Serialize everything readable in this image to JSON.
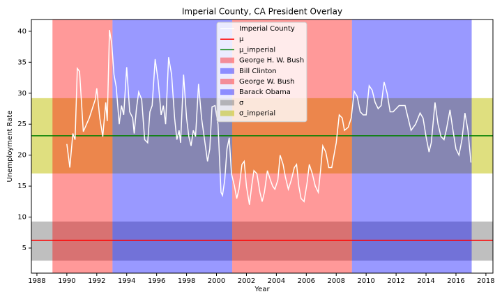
{
  "chart_data": {
    "type": "line",
    "title": "Imperial County, CA President Overlay",
    "xlabel": "Year",
    "ylabel": "Unemployment Rate",
    "xlim": [
      1987.63,
      2018.47
    ],
    "ylim": [
      0.95,
      41.9
    ],
    "xticks": [
      1988,
      1990,
      1992,
      1994,
      1996,
      1998,
      2000,
      2002,
      2004,
      2006,
      2008,
      2010,
      2012,
      2014,
      2016,
      2018
    ],
    "yticks": [
      5,
      10,
      15,
      20,
      25,
      30,
      35,
      40
    ],
    "legend": "upper center",
    "x": [
      1990.0,
      1990.2,
      1990.4,
      1990.55,
      1990.7,
      1990.85,
      1991.1,
      1991.5,
      1991.9,
      1992.0,
      1992.2,
      1992.4,
      1992.6,
      1992.7,
      1992.85,
      1993.0,
      1993.15,
      1993.3,
      1993.5,
      1993.65,
      1993.8,
      1994.0,
      1994.2,
      1994.4,
      1994.5,
      1994.65,
      1994.8,
      1995.0,
      1995.2,
      1995.4,
      1995.55,
      1995.7,
      1995.9,
      1996.1,
      1996.3,
      1996.45,
      1996.6,
      1996.8,
      1997.0,
      1997.2,
      1997.35,
      1997.5,
      1997.6,
      1997.8,
      1998.0,
      1998.15,
      1998.3,
      1998.45,
      1998.6,
      1998.8,
      1999.0,
      1999.2,
      1999.4,
      1999.55,
      1999.7,
      1999.9,
      2000.1,
      2000.3,
      2000.4,
      2000.55,
      2000.7,
      2000.85,
      2001.0,
      2001.2,
      2001.35,
      2001.5,
      2001.7,
      2001.85,
      2002.0,
      2002.2,
      2002.35,
      2002.5,
      2002.7,
      2002.9,
      2003.05,
      2003.2,
      2003.4,
      2003.6,
      2003.75,
      2003.9,
      2004.1,
      2004.25,
      2004.45,
      2004.6,
      2004.8,
      2005.0,
      2005.2,
      2005.35,
      2005.5,
      2005.65,
      2005.85,
      2006.05,
      2006.2,
      2006.4,
      2006.6,
      2006.8,
      2006.95,
      2007.1,
      2007.3,
      2007.5,
      2007.7,
      2007.85,
      2008.0,
      2008.2,
      2008.4,
      2008.55,
      2008.8,
      2009.0,
      2009.2,
      2009.4,
      2009.6,
      2009.8,
      2010.0,
      2010.2,
      2010.4,
      2010.6,
      2010.8,
      2011.0,
      2011.2,
      2011.4,
      2011.6,
      2011.8,
      2012.0,
      2012.2,
      2012.4,
      2012.6,
      2012.8,
      2013.0,
      2013.3,
      2013.6,
      2013.8,
      2014.0,
      2014.2,
      2014.35,
      2014.6,
      2014.8,
      2015.0,
      2015.2,
      2015.35,
      2015.6,
      2015.8,
      2016.0,
      2016.2,
      2016.4,
      2016.6,
      2016.8,
      2017.0
    ],
    "series": [
      {
        "name": "Imperial County",
        "color": "#ffffff",
        "values": [
          21.8,
          18,
          23.5,
          22.5,
          34,
          33.5,
          23.8,
          26,
          29,
          30.8,
          26,
          23,
          28.5,
          25.5,
          40.2,
          38,
          33,
          31,
          25,
          28,
          26.5,
          34.2,
          27,
          26,
          23.5,
          27.5,
          30.2,
          29,
          22.5,
          22,
          27,
          28,
          35.5,
          32,
          26.5,
          28,
          25,
          35.8,
          33,
          26,
          22.5,
          24,
          22,
          33,
          26,
          23,
          21.5,
          24,
          23,
          31.5,
          26,
          22.5,
          19,
          21,
          27.8,
          28,
          25,
          14,
          13.5,
          16,
          21,
          22.8,
          17,
          15,
          13,
          14.5,
          18.5,
          19,
          15,
          12,
          15,
          17.5,
          17,
          14,
          12.5,
          14,
          17.5,
          16,
          15,
          14.5,
          16,
          20,
          18.5,
          16.5,
          14.5,
          16,
          18,
          18.5,
          15,
          13,
          12.5,
          15.5,
          18.5,
          17,
          15,
          14,
          17.5,
          21.5,
          20.5,
          18,
          18,
          20,
          22,
          26.5,
          26,
          24,
          24.5,
          26,
          30.3,
          29.5,
          27,
          26.5,
          26.5,
          31.2,
          30.5,
          28.5,
          27.5,
          28,
          31.8,
          30,
          27,
          27,
          27.5,
          28,
          28,
          28,
          26,
          24,
          25,
          26.8,
          26,
          23,
          20.5,
          22,
          28.5,
          25,
          23,
          22.5,
          24,
          27.3,
          24,
          21,
          20,
          22.5,
          26.8,
          24,
          18.8
        ]
      }
    ],
    "hlines": [
      {
        "name": "μ",
        "value": 6.24,
        "color": "#ff0000"
      },
      {
        "name": "μ_imperial",
        "value": 23.12,
        "color": "#008000"
      }
    ],
    "vspans": [
      {
        "name": "George H. W. Bush",
        "start": 1989.04,
        "end": 1993.05,
        "color": "#ff0000"
      },
      {
        "name": "Bill Clinton",
        "start": 1993.05,
        "end": 2001.05,
        "color": "#0000ff"
      },
      {
        "name": "George W. Bush",
        "start": 2001.05,
        "end": 2009.05,
        "color": "#ff0000"
      },
      {
        "name": "Barack Obama",
        "start": 2009.05,
        "end": 2017.05,
        "color": "#0000ff"
      }
    ],
    "hspans": [
      {
        "name": "σ",
        "lower": 2.97,
        "upper": 9.28,
        "color": "#808080"
      },
      {
        "name": "σ_imperial",
        "lower": 17.04,
        "upper": 29.2,
        "color": "#bfbf00"
      }
    ]
  }
}
